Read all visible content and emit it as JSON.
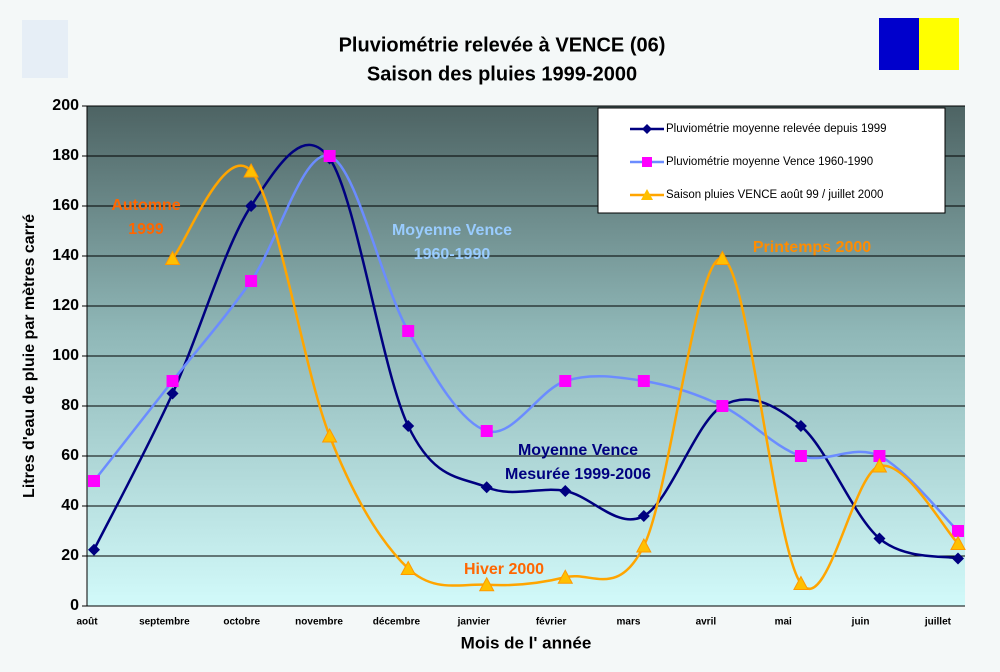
{
  "chart_data": {
    "type": "line",
    "title": "Pluviométrie relevée à VENCE (06)",
    "subtitle": "Saison des pluies 1999-2000",
    "x_label": "Mois de l' année",
    "y_label": "Litres d'eau de pluie par mètres carré",
    "categories": [
      "août",
      "septembre",
      "octobre",
      "novembre",
      "décembre",
      "janvier",
      "février",
      "mars",
      "avril",
      "mai",
      "juin",
      "juillet"
    ],
    "series": [
      {
        "name": "Pluviométrie moyenne relevée depuis 1999",
        "color": "#000080",
        "marker": "diamond",
        "values": [
          22.5,
          85,
          160,
          179,
          72,
          47.5,
          46,
          36,
          80,
          72,
          27,
          19
        ]
      },
      {
        "name": "Pluviométrie  moyenne Vence 1960-1990",
        "color": "#6b8cff",
        "marker": "square",
        "marker_color": "#ff00ff",
        "values": [
          50,
          90,
          130,
          180,
          110,
          70,
          90,
          90,
          80,
          60,
          60,
          30
        ]
      },
      {
        "name": "Saison pluies VENCE août 99 / juillet 2000",
        "color": "#ffa500",
        "marker": "triangle",
        "marker_color": "#ffc000",
        "values": [
          null,
          139,
          174,
          68,
          15,
          8.5,
          11.5,
          24,
          139,
          9,
          56,
          25
        ]
      }
    ],
    "annotations": [
      {
        "lines": [
          "Automne",
          "1999"
        ],
        "color": "#ff6600"
      },
      {
        "lines": [
          "Moyenne Vence",
          "1960-1990"
        ],
        "color": "#99ccff"
      },
      {
        "lines": [
          "Printemps  2000"
        ],
        "color": "#ff8c00"
      },
      {
        "lines": [
          "Moyenne Vence",
          "Mesurée 1999-2006"
        ],
        "color": "#000080"
      },
      {
        "lines": [
          "Hiver 2000"
        ],
        "color": "#ff6600"
      }
    ],
    "ylim": [
      0,
      200
    ],
    "yticks": [
      0,
      20,
      40,
      60,
      80,
      100,
      120,
      140,
      160,
      180,
      200
    ],
    "grid": true,
    "legend": "top-right"
  }
}
